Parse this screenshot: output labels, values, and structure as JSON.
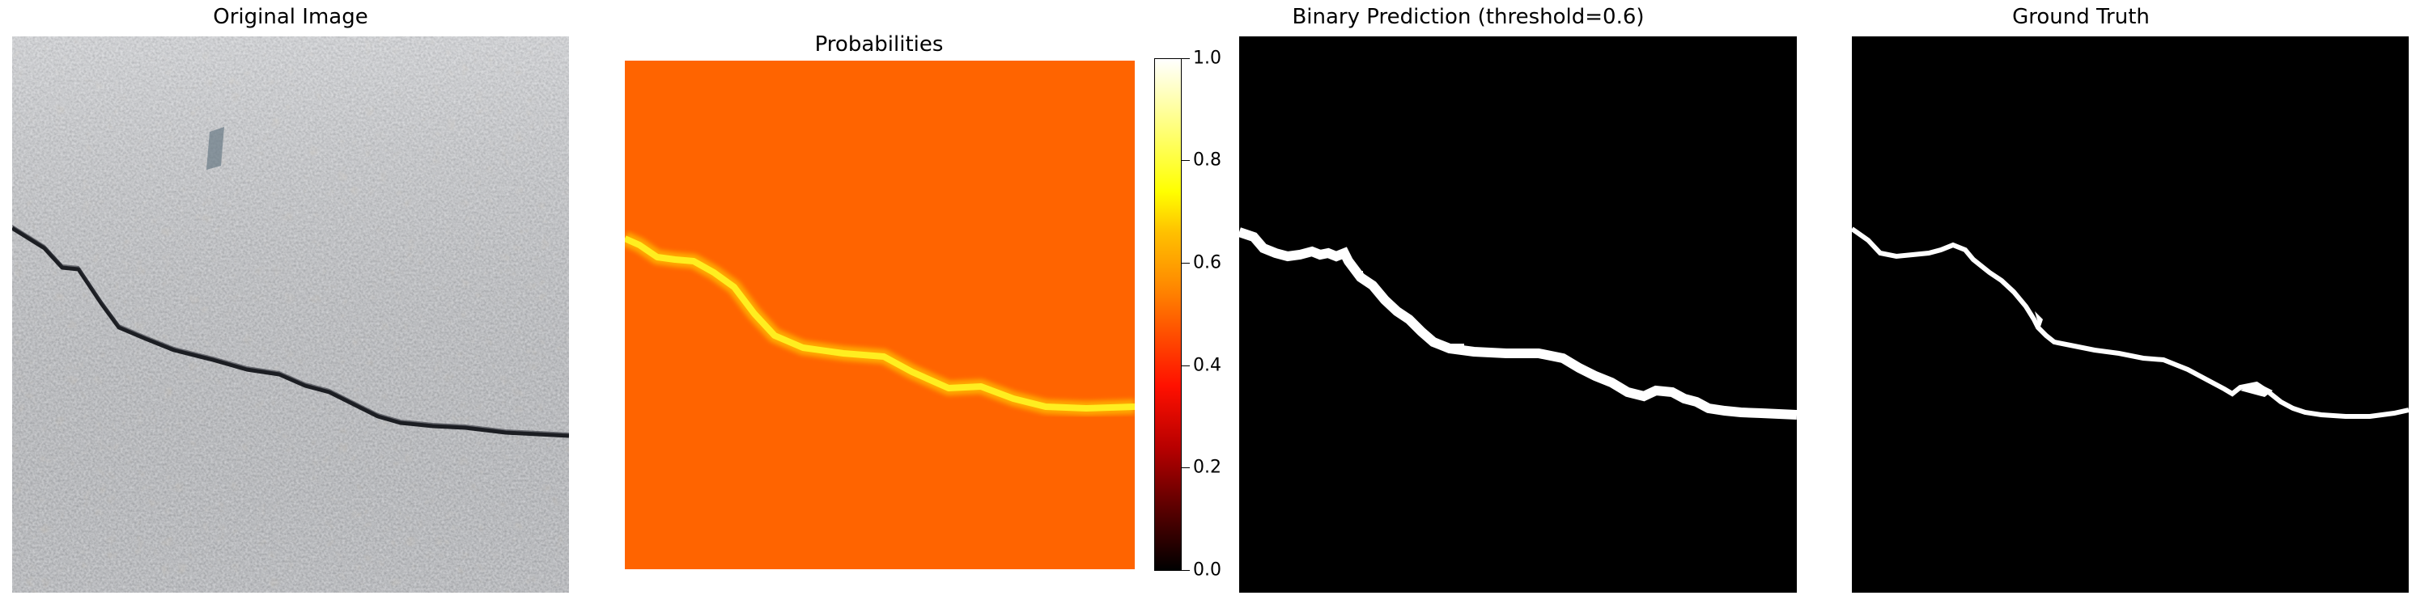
{
  "panels": {
    "original": {
      "title": "Original Image"
    },
    "probabilities": {
      "title": "Probabilities"
    },
    "binary": {
      "title": "Binary Prediction (threshold=0.6)"
    },
    "ground_truth": {
      "title": "Ground Truth"
    }
  },
  "colorbar": {
    "min": 0.0,
    "max": 1.0,
    "ticks": [
      "0.0",
      "0.2",
      "0.4",
      "0.6",
      "0.8",
      "1.0"
    ]
  },
  "colors": {
    "background_prob": "#ff6400",
    "crack_prob": "#ffe600",
    "mask_bg": "#000000",
    "mask_fg": "#ffffff",
    "asphalt": "#9a9ca0"
  }
}
